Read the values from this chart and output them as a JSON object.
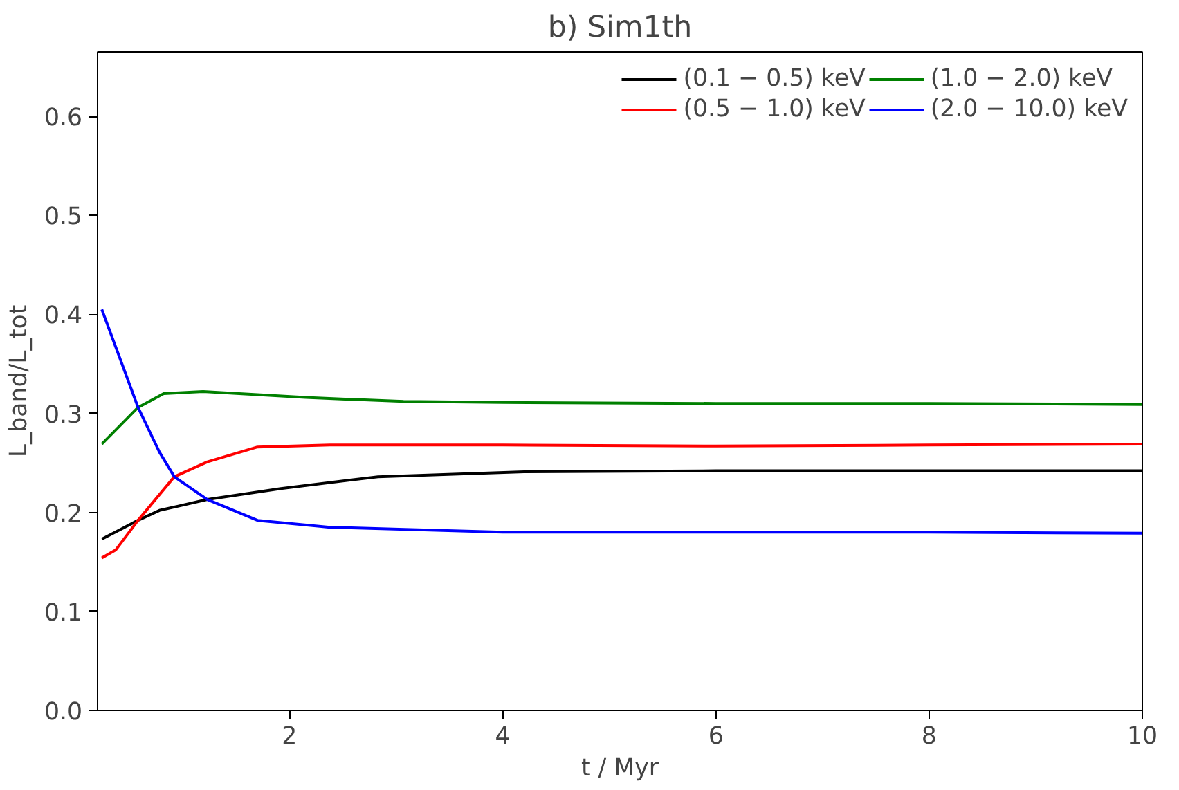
{
  "chart_data": {
    "type": "line",
    "title": "b) Sim1th",
    "xlabel": "t / Myr",
    "ylabel": "L_band/L_tot",
    "xlim": [
      0.2,
      10
    ],
    "ylim": [
      0,
      0.665
    ],
    "xticks": [
      2,
      4,
      6,
      8,
      10
    ],
    "yticks": [
      {
        "value": 0,
        "label": "0.0"
      },
      0.1,
      0.2,
      0.3,
      0.4,
      0.5,
      0.6
    ],
    "grid": false,
    "legend": "top right",
    "marker": "none",
    "line_style": "solid",
    "series": [
      {
        "name": "(0.1 − 0.5) keV",
        "color": "#000000",
        "x": [
          0.24,
          0.58,
          0.78,
          1.23,
          1.92,
          2.83,
          4.2,
          6,
          8,
          10
        ],
        "values": [
          0.173,
          0.192,
          0.202,
          0.213,
          0.224,
          0.236,
          0.241,
          0.242,
          0.242,
          0.242
        ]
      },
      {
        "name": "(0.5 − 1.0) keV",
        "color": "#ff0000",
        "x": [
          0.24,
          0.37,
          0.58,
          0.92,
          1.23,
          1.7,
          2.38,
          4,
          6,
          8,
          10
        ],
        "values": [
          0.154,
          0.162,
          0.192,
          0.236,
          0.251,
          0.266,
          0.268,
          0.268,
          0.267,
          0.268,
          0.269
        ]
      },
      {
        "name": "(1.0 − 2.0) keV",
        "color": "#008000",
        "x": [
          0.24,
          0.58,
          0.82,
          1.19,
          2.15,
          3.07,
          4,
          6,
          8,
          10
        ],
        "values": [
          0.269,
          0.306,
          0.32,
          0.322,
          0.316,
          0.312,
          0.311,
          0.31,
          0.31,
          0.309
        ]
      },
      {
        "name": "(2.0 − 10.0) keV",
        "color": "#0000ff",
        "x": [
          0.24,
          0.58,
          0.78,
          0.92,
          1.23,
          1.7,
          2.38,
          4,
          6,
          8,
          10
        ],
        "values": [
          0.405,
          0.306,
          0.261,
          0.236,
          0.213,
          0.192,
          0.185,
          0.18,
          0.18,
          0.18,
          0.179
        ]
      }
    ]
  }
}
